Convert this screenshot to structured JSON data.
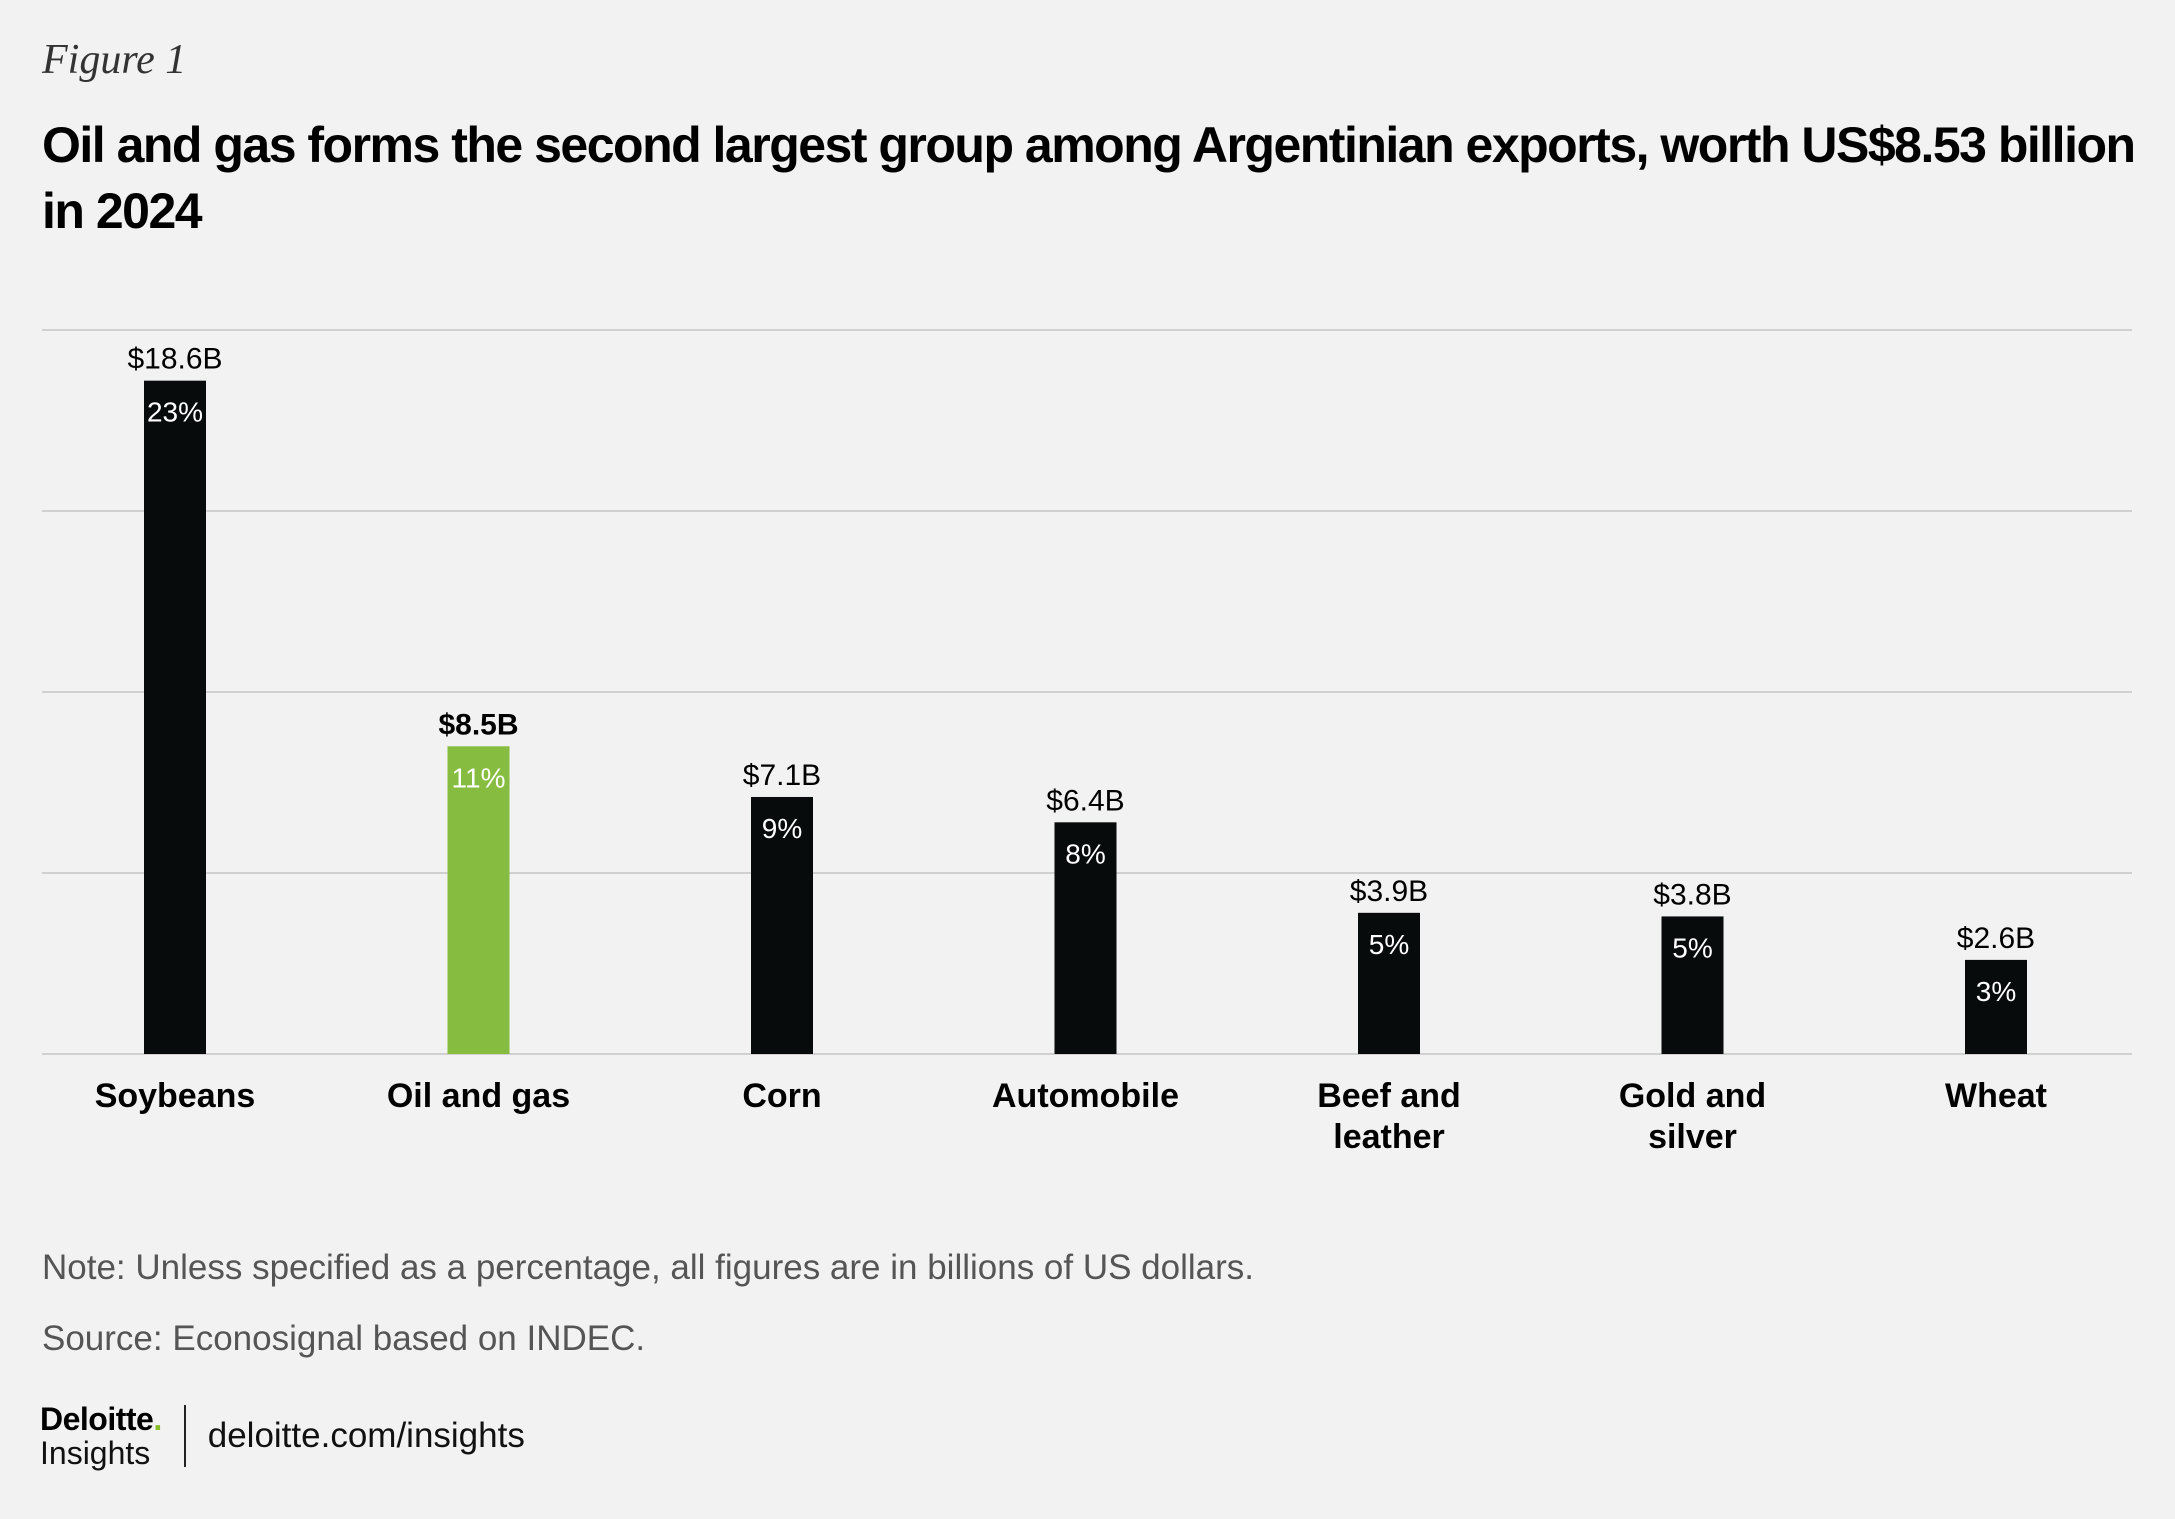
{
  "figure_label": "Figure 1",
  "title": "Oil and gas forms the second largest group among Argentinian exports, worth US$8.53 billion in 2024",
  "note": "Note: Unless specified as a percentage, all figures are in billions of US dollars.",
  "source": "Source: Econosignal based on INDEC.",
  "footer": {
    "logo_main": "Deloitte",
    "logo_dot": ".",
    "logo_sub": "Insights",
    "url": "deloitte.com/insights"
  },
  "colors": {
    "bar_default": "#070b0b",
    "bar_highlight": "#86bc3f",
    "grid": "#d0d0d0",
    "background": "#f2f2f2"
  },
  "chart_data": {
    "type": "bar",
    "title": "Oil and gas forms the second largest group among Argentinian exports, worth US$8.53 billion in 2024",
    "xlabel": "",
    "ylabel": "",
    "ylim": [
      0,
      20
    ],
    "yticks": [
      0,
      5,
      10,
      15,
      20
    ],
    "grid": true,
    "categories": [
      [
        "Soybeans"
      ],
      [
        "Oil and gas"
      ],
      [
        "Corn"
      ],
      [
        "Automobile"
      ],
      [
        "Beef and",
        "leather"
      ],
      [
        "Gold and",
        "silver"
      ],
      [
        "Wheat"
      ]
    ],
    "values": [
      18.6,
      8.5,
      7.1,
      6.4,
      3.9,
      3.8,
      2.6
    ],
    "value_labels": [
      "$18.6B",
      "$8.5B",
      "$7.1B",
      "$6.4B",
      "$3.9B",
      "$3.8B",
      "$2.6B"
    ],
    "percent_labels": [
      "23%",
      "11%",
      "9%",
      "8%",
      "5%",
      "5%",
      "3%"
    ],
    "highlight_index": 1
  }
}
